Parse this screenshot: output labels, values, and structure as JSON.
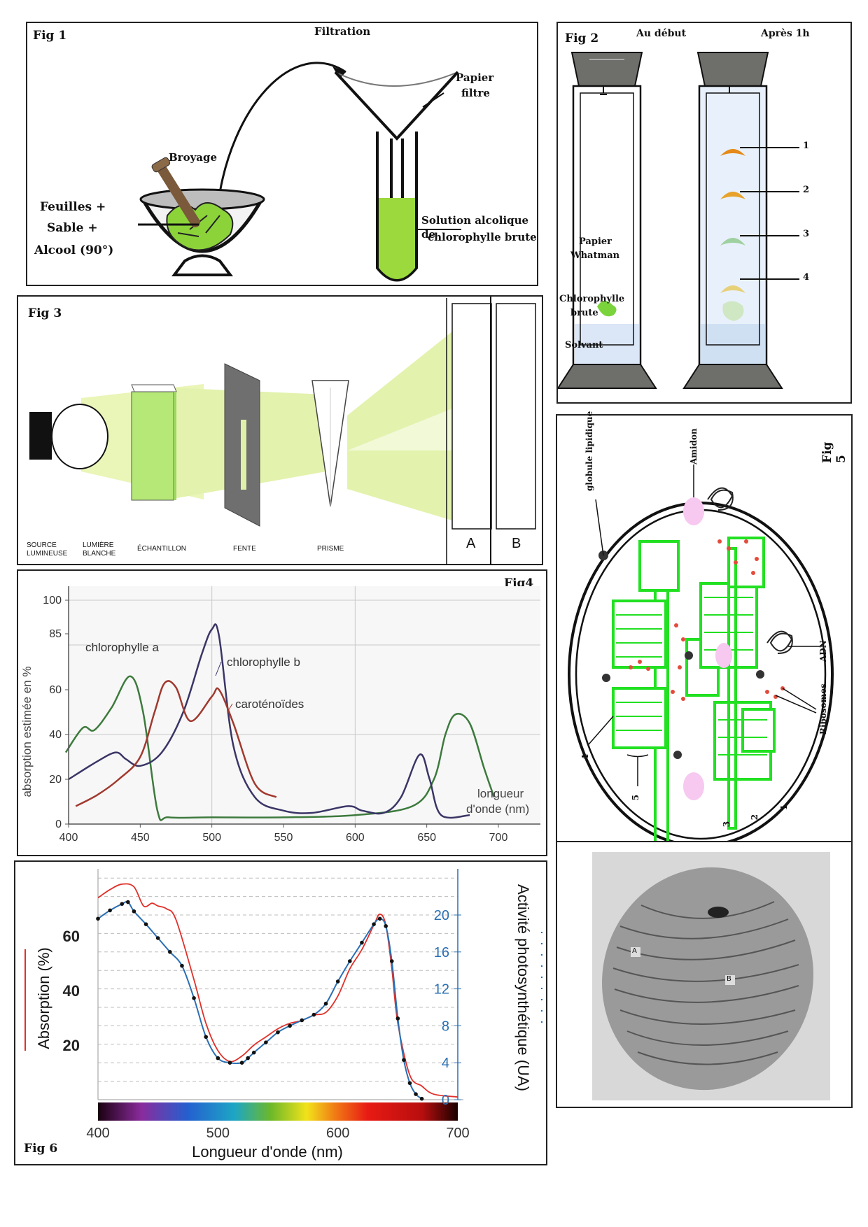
{
  "fig1": {
    "tag": "Fig 1",
    "filtration": "Filtration",
    "papier": "Papier",
    "filtre": "filtre",
    "broyage": "Broyage",
    "mix_l1": "Feuilles +",
    "mix_l2": "Sable +",
    "mix_l3": "Alcool (90°)",
    "solution_l1": "Solution alcolique de",
    "solution_l2": "chlorophylle brute"
  },
  "fig2": {
    "tag": "Fig 2",
    "debut": "Au début",
    "apres": "Après 1h",
    "papier_l1": "Papier",
    "papier_l2": "Whatman",
    "chloro_l1": "Chlorophylle",
    "chloro_l2": "brute",
    "solvant": "Solvant",
    "bands": [
      "1",
      "2",
      "3",
      "4"
    ]
  },
  "fig3": {
    "tag": "Fig 3",
    "source_l1": "SOURCE",
    "source_l2": "LUMINEUSE",
    "lumiere_l1": "LUMIÈRE",
    "lumiere_l2": "BLANCHE",
    "echantillon": "ÉCHANTILLON",
    "fente": "FENTE",
    "prisme": "PRISME",
    "screen_a": "A",
    "screen_b": "B"
  },
  "fig4": {
    "tag": "Fig4",
    "chart_data": {
      "type": "line",
      "ylabel": "absorption estimée en %",
      "xlabel": "longueur d'onde (nm)",
      "xlim": [
        400,
        700
      ],
      "ylim": [
        0,
        100
      ],
      "xticks": [
        400,
        450,
        500,
        550,
        600,
        650,
        700
      ],
      "yticks": [
        0,
        20,
        40,
        60,
        85,
        100
      ],
      "series": [
        {
          "name": "chlorophylle a",
          "color": "#3d7a3d",
          "x": [
            398,
            410,
            418,
            430,
            443,
            452,
            462,
            470,
            500,
            550,
            600,
            640,
            655,
            663,
            670,
            680,
            690,
            697
          ],
          "y": [
            32,
            43,
            42,
            52,
            66,
            50,
            6,
            3,
            3,
            3,
            4,
            8,
            20,
            40,
            49,
            45,
            25,
            12
          ]
        },
        {
          "name": "chlorophylle b",
          "color": "#3a3566",
          "x": [
            400,
            420,
            433,
            440,
            450,
            465,
            480,
            493,
            500,
            505,
            515,
            530,
            550,
            570,
            595,
            605,
            620,
            632,
            645,
            652,
            660,
            680
          ],
          "y": [
            20,
            28,
            32,
            29,
            26,
            32,
            50,
            76,
            87,
            84,
            35,
            12,
            6,
            5,
            8,
            6,
            5,
            12,
            31,
            20,
            4,
            4
          ]
        },
        {
          "name": "caroténoïdes",
          "color": "#a0392e",
          "x": [
            405,
            420,
            435,
            450,
            460,
            467,
            475,
            485,
            500,
            505,
            515,
            530,
            545
          ],
          "y": [
            8,
            13,
            20,
            30,
            50,
            63,
            61,
            46,
            57,
            60,
            45,
            18,
            12
          ]
        }
      ]
    }
  },
  "fig5": {
    "tag": "Fig 5",
    "globule": "globule lipidique",
    "amidon": "Amidon",
    "adn": "ADN",
    "ribosomes": "Ribosomes",
    "n1": "1",
    "n2": "2",
    "n3": "3",
    "n4": "4",
    "n5": "5",
    "micro_a": "A",
    "micro_b": "B"
  },
  "fig6": {
    "tag": "Fig 6",
    "chart_data": {
      "type": "line",
      "ylabel_left": "Absorption (%)",
      "ylabel_right": "Activité photosynthétique (UA)",
      "xlabel": "Longueur d'onde (nm)",
      "xlim": [
        400,
        700
      ],
      "xticks": [
        400,
        500,
        600,
        700
      ],
      "yticks_left": [
        20,
        40,
        60
      ],
      "yticks_right": [
        0,
        4,
        8,
        12,
        16,
        20
      ],
      "series": [
        {
          "name": "Absorption (%)",
          "color": "#e0302a",
          "x": [
            400,
            410,
            420,
            430,
            438,
            445,
            450,
            457,
            465,
            480,
            490,
            500,
            510,
            520,
            530,
            540,
            550,
            560,
            570,
            580,
            590,
            600,
            610,
            620,
            630,
            635,
            640,
            645,
            650,
            660,
            670,
            680,
            700
          ],
          "y": [
            74,
            77,
            79,
            78,
            71,
            72,
            71,
            70,
            66,
            44,
            28,
            18,
            14,
            16,
            20,
            23,
            26,
            28,
            29,
            31,
            32,
            38,
            48,
            55,
            64,
            68,
            64,
            48,
            28,
            9,
            5,
            2,
            1
          ]
        },
        {
          "name": "Activité photosynthétique (UA)",
          "color": "#2a6fb3",
          "x": [
            400,
            410,
            420,
            425,
            430,
            440,
            450,
            460,
            470,
            480,
            490,
            500,
            510,
            520,
            525,
            530,
            540,
            550,
            560,
            570,
            580,
            590,
            600,
            610,
            620,
            630,
            635,
            640,
            645,
            650,
            655,
            660,
            665,
            670
          ],
          "y": [
            19.6,
            20.5,
            21.2,
            21.4,
            20.4,
            19.0,
            17.5,
            16.0,
            14.5,
            11.0,
            6.8,
            4.5,
            4.0,
            4.0,
            4.5,
            5.1,
            6.2,
            7.3,
            8.0,
            8.6,
            9.2,
            10.4,
            12.8,
            15.0,
            17.0,
            19.0,
            19.6,
            18.8,
            15.0,
            8.8,
            4.3,
            1.8,
            0.6,
            0.1
          ]
        }
      ]
    }
  }
}
